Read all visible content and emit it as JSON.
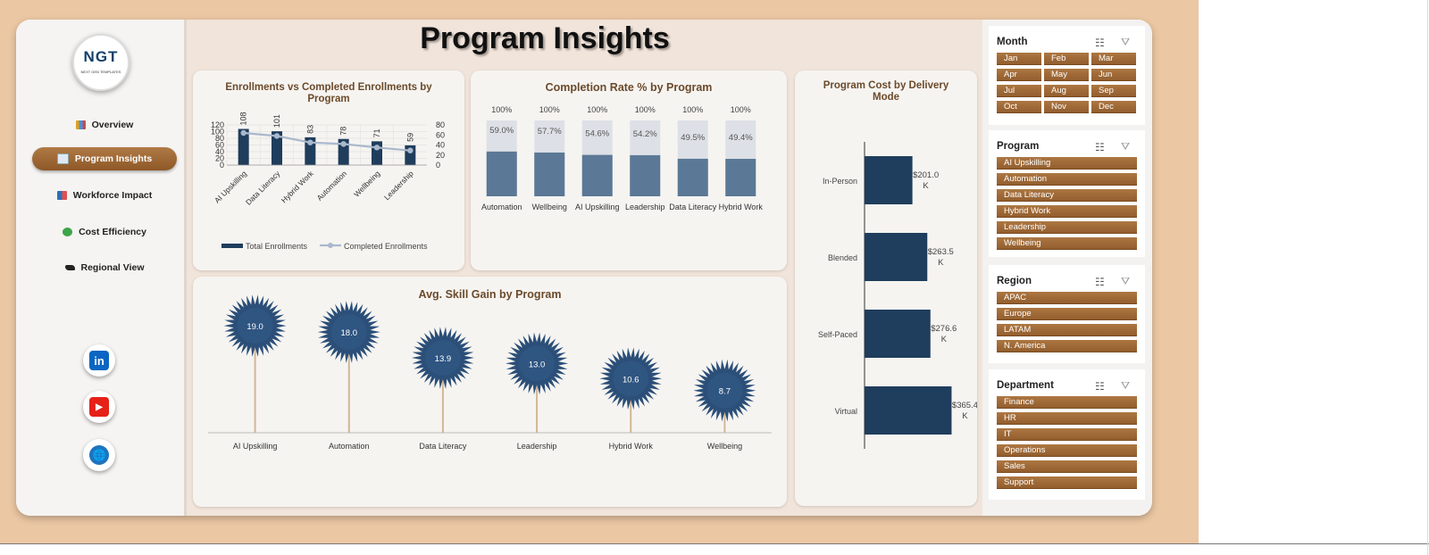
{
  "page": {
    "title": "Program Insights"
  },
  "logo": {
    "text": "NGT",
    "subtext": "NEXT GEN TEMPLATES"
  },
  "nav": [
    {
      "label": "Overview",
      "icon": "chart-icon",
      "active": false
    },
    {
      "label": "Program Insights",
      "icon": "trend-icon",
      "active": true
    },
    {
      "label": "Workforce Impact",
      "icon": "bar-icon",
      "active": false
    },
    {
      "label": "Cost Efficiency",
      "icon": "money-icon",
      "active": false
    },
    {
      "label": "Regional View",
      "icon": "world-map-icon",
      "active": false
    }
  ],
  "social": [
    {
      "icon": "linkedin-icon",
      "glyph": "in",
      "color": "#0a66c2"
    },
    {
      "icon": "youtube-icon",
      "glyph": "▶",
      "color": "#e62117"
    },
    {
      "icon": "globe-icon",
      "glyph": "🌐",
      "color": "#1e73be"
    }
  ],
  "colors": {
    "navy": "#1f3d5c",
    "slate": "#5b7896",
    "lightbar": "#dde0e6",
    "accent": "#9a6433",
    "line": "#a9b8cc"
  },
  "slicers": [
    {
      "title": "Month",
      "items": [
        "Jan",
        "Feb",
        "Mar",
        "Apr",
        "May",
        "Jun",
        "Jul",
        "Aug",
        "Sep",
        "Oct",
        "Nov",
        "Dec"
      ],
      "columns": 3
    },
    {
      "title": "Program",
      "items": [
        "AI Upskilling",
        "Automation",
        "Data Literacy",
        "Hybrid Work",
        "Leadership",
        "Wellbeing"
      ],
      "columns": 1
    },
    {
      "title": "Region",
      "items": [
        "APAC",
        "Europe",
        "LATAM",
        "N. America"
      ],
      "columns": 1
    },
    {
      "title": "Department",
      "items": [
        "Finance",
        "HR",
        "IT",
        "Operations",
        "Sales",
        "Support"
      ],
      "columns": 1
    }
  ],
  "chart_data": [
    {
      "type": "bar",
      "title": "Enrollments vs Completed Enrollments by Program",
      "categories": [
        "AI Upskilling",
        "Data Literacy",
        "Hybrid Work",
        "Automation",
        "Wellbeing",
        "Leadership"
      ],
      "series": [
        {
          "name": "Total Enrollments",
          "type": "bar",
          "values": [
            108,
            101,
            83,
            78,
            71,
            59
          ]
        },
        {
          "name": "Completed Enrollments",
          "type": "line",
          "values": [
            64,
            58,
            45,
            42,
            35,
            29
          ]
        }
      ],
      "y_ticks_left": [
        0,
        20,
        40,
        60,
        80,
        100,
        120
      ],
      "y_ticks_right": [
        0,
        20,
        40,
        60,
        80
      ],
      "ylim_left": [
        0,
        120
      ],
      "ylim_right": [
        0,
        80
      ],
      "legend": "bottom"
    },
    {
      "type": "bar",
      "title": "Completion Rate % by Program",
      "categories": [
        "Automation",
        "Wellbeing",
        "AI Upskilling",
        "Leadership",
        "Data Literacy",
        "Hybrid Work"
      ],
      "values": [
        59.0,
        57.7,
        54.6,
        54.2,
        49.5,
        49.4
      ],
      "value_labels": [
        "59.0%",
        "57.7%",
        "54.6%",
        "54.2%",
        "49.5%",
        "49.4%"
      ],
      "total_label": "100%"
    },
    {
      "type": "bar",
      "title": "Program Cost by Delivery Mode",
      "orientation": "horizontal",
      "categories": [
        "In-Person",
        "Blended",
        "Self-Paced",
        "Virtual"
      ],
      "values": [
        201.0,
        263.5,
        276.6,
        365.4
      ],
      "value_labels": [
        "$201.0 K",
        "$263.5 K",
        "$276.6 K",
        "$365.4 K"
      ]
    },
    {
      "type": "bar",
      "title": "Avg. Skill Gain by Program",
      "categories": [
        "AI Upskilling",
        "Automation",
        "Data Literacy",
        "Leadership",
        "Hybrid Work",
        "Wellbeing"
      ],
      "values": [
        19.0,
        18.0,
        13.9,
        13.0,
        10.6,
        8.7
      ],
      "value_labels": [
        "19.0",
        "18.0",
        "13.9",
        "13.0",
        "10.6",
        "8.7"
      ]
    }
  ]
}
